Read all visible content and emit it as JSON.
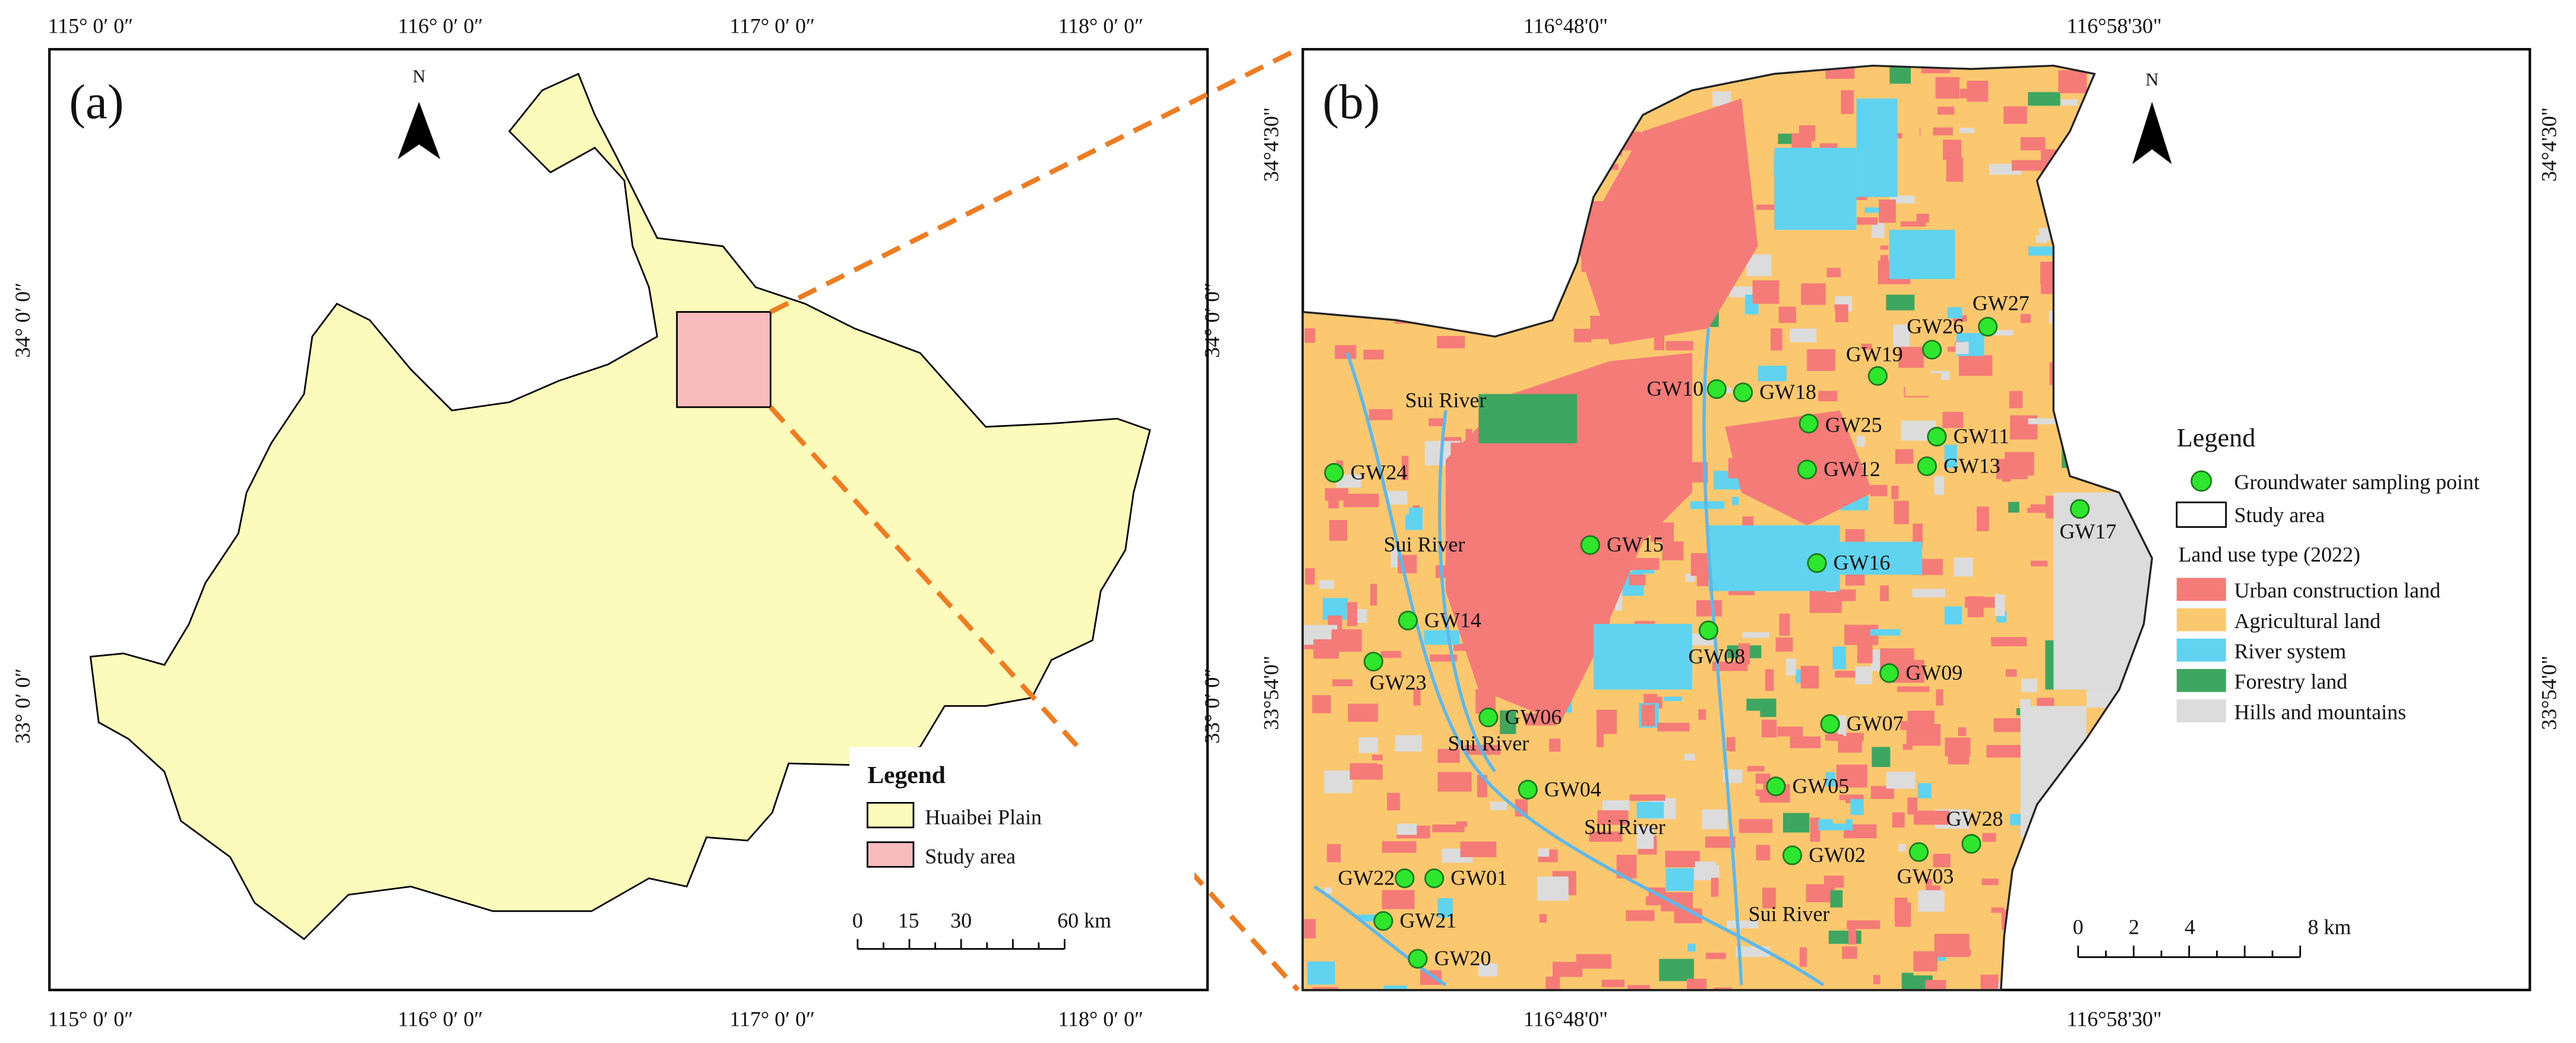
{
  "panel_a": {
    "label": "(a)",
    "north": "N",
    "top_ticks": [
      "115° 0′ 0″",
      "116° 0′ 0″",
      "117° 0′ 0″",
      "118° 0′ 0″"
    ],
    "bottom_ticks": [
      "115° 0′ 0″",
      "116° 0′ 0″",
      "117° 0′ 0″",
      "118° 0′ 0″"
    ],
    "left_ticks": [
      "34° 0′ 0″",
      "33° 0′ 0″"
    ],
    "right_ticks": [
      "34° 0′ 0″",
      "33° 0′ 0″"
    ],
    "legend": {
      "title": "Legend",
      "items": [
        "Huaibei Plain",
        "Study area"
      ]
    },
    "scale": [
      "0",
      "15",
      "30",
      "60 km"
    ]
  },
  "panel_b": {
    "label": "(b)",
    "north": "N",
    "top_ticks": [
      "116°48'0\"",
      "116°58'30\""
    ],
    "bottom_ticks": [
      "116°48'0\"",
      "116°58'30\""
    ],
    "left_ticks": [
      "34°4'30\"",
      "33°54'0\""
    ],
    "right_ticks": [
      "34°4'30\"",
      "33°54'0\""
    ],
    "rivers": [
      "Sui River",
      "Sui River",
      "Sui River",
      "Sui River",
      "Sui River"
    ],
    "points": [
      "GW27",
      "GW26",
      "GW19",
      "GW10",
      "GW18",
      "GW25",
      "GW11",
      "GW12",
      "GW13",
      "GW24",
      "GW17",
      "GW15",
      "GW16",
      "GW14",
      "GW08",
      "GW23",
      "GW09",
      "GW06",
      "GW07",
      "GW04",
      "GW05",
      "GW28",
      "GW02",
      "GW03",
      "GW22",
      "GW01",
      "GW21",
      "GW20"
    ],
    "legend": {
      "title": "Legend",
      "point": "Groundwater sampling point",
      "study": "Study area",
      "landuse_title": "Land use type (2022)",
      "landuse": [
        "Urban construction land",
        "Agricultural land",
        "River system",
        "Forestry land",
        "Hills and mountains"
      ]
    },
    "scale": [
      "0",
      "2",
      "4",
      "8 km"
    ]
  }
}
